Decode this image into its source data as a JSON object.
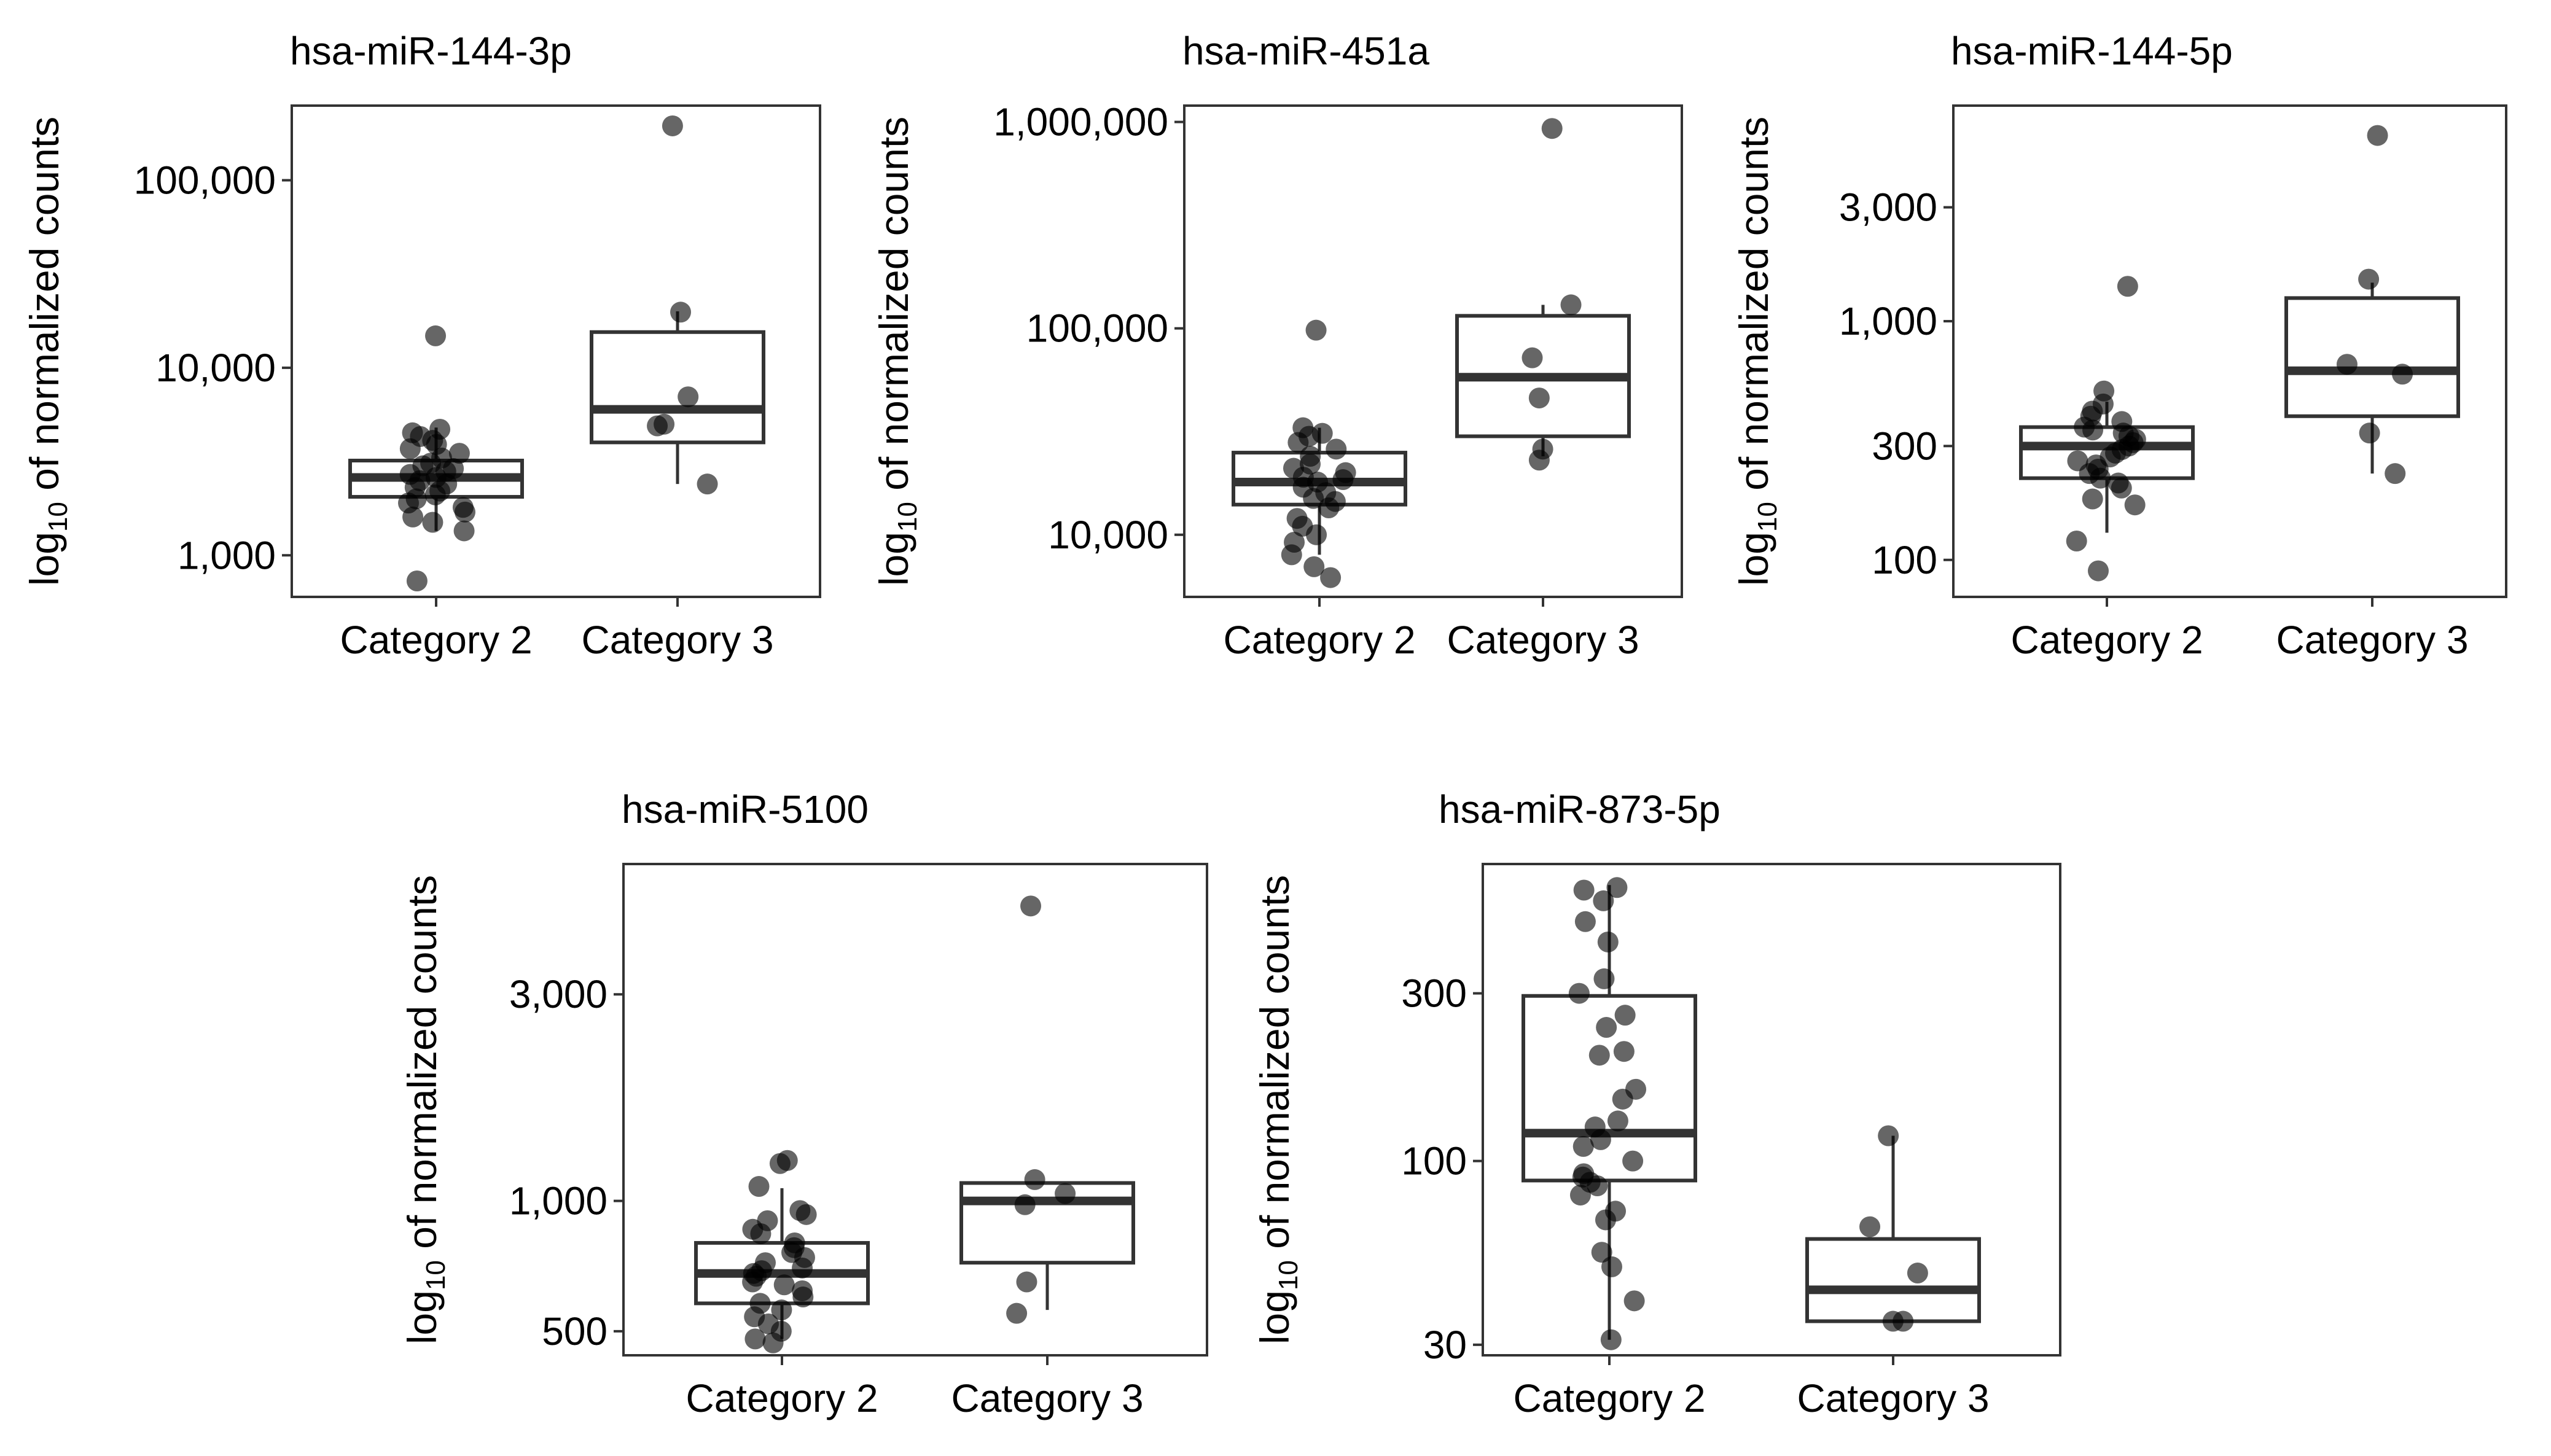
{
  "shared": {
    "ylabel_prefix": "log",
    "ylabel_sub": "10",
    "ylabel_suffix": " of normalized counts"
  },
  "chart_data": [
    {
      "type": "box",
      "title": "hsa-miR-144-3p",
      "ylabel": "log10 of normalized counts",
      "yscale": "log",
      "ylim": [
        600,
        250000
      ],
      "yticks": [
        1000,
        10000,
        100000
      ],
      "ytick_labels": [
        "1,000",
        "10,000",
        "100,000"
      ],
      "categories": [
        "Category 2",
        "Category 3"
      ],
      "boxes": [
        {
          "q1": 2050,
          "median": 2600,
          "q3": 3200,
          "whisker_low": 1350,
          "whisker_high": 4800
        },
        {
          "q1": 4000,
          "median": 6000,
          "q3": 15500,
          "whisker_low": 2400,
          "whisker_high": 20000
        }
      ],
      "points": [
        [
          14800,
          4700,
          4500,
          4300,
          4100,
          3900,
          3700,
          3500,
          3300,
          3100,
          3000,
          2900,
          2800,
          2700,
          2600,
          2500,
          2400,
          2300,
          2200,
          2100,
          2000,
          1900,
          1800,
          1700,
          1600,
          1500,
          1350,
          730
        ],
        [
          195000,
          19800,
          7000,
          5000,
          4900,
          2400
        ]
      ]
    },
    {
      "type": "box",
      "title": "hsa-miR-451a",
      "ylabel": "log10 of normalized counts",
      "yscale": "log",
      "ylim": [
        5000,
        1200000
      ],
      "yticks": [
        10000,
        100000,
        1000000
      ],
      "ytick_labels": [
        "10,000",
        "100,000",
        "1,000,000"
      ],
      "categories": [
        "Category 2",
        "Category 3"
      ],
      "boxes": [
        {
          "q1": 14000,
          "median": 18000,
          "q3": 25000,
          "whisker_low": 8000,
          "whisker_high": 33000
        },
        {
          "q1": 30000,
          "median": 58000,
          "q3": 115000,
          "whisker_low": 24000,
          "whisker_high": 130000
        }
      ],
      "points": [
        [
          98000,
          33000,
          31000,
          30000,
          28000,
          26000,
          24000,
          22000,
          21000,
          20000,
          19000,
          18500,
          18000,
          17000,
          16000,
          15000,
          14500,
          13500,
          12000,
          11000,
          10000,
          9200,
          8000,
          7000,
          6200
        ],
        [
          930000,
          130000,
          72000,
          46000,
          26000,
          23000
        ]
      ]
    },
    {
      "type": "box",
      "title": "hsa-miR-144-5p",
      "ylabel": "log10 of normalized counts",
      "yscale": "log",
      "ylim": [
        70,
        8000
      ],
      "yticks": [
        100,
        300,
        1000,
        3000
      ],
      "ytick_labels": [
        "100",
        "300",
        "1,000",
        "3,000"
      ],
      "categories": [
        "Category 2",
        "Category 3"
      ],
      "boxes": [
        {
          "q1": 220,
          "median": 300,
          "q3": 360,
          "whisker_low": 130,
          "whisker_high": 460
        },
        {
          "q1": 400,
          "median": 620,
          "q3": 1250,
          "whisker_low": 230,
          "whisker_high": 1450
        }
      ],
      "points": [
        [
          1400,
          510,
          450,
          420,
          400,
          380,
          360,
          350,
          340,
          330,
          320,
          310,
          300,
          290,
          280,
          270,
          260,
          250,
          240,
          230,
          220,
          210,
          200,
          180,
          170,
          120,
          90
        ],
        [
          6000,
          1500,
          660,
          600,
          340,
          230
        ]
      ]
    },
    {
      "type": "box",
      "title": "hsa-miR-5100",
      "ylabel": "log10 of normalized counts",
      "yscale": "log",
      "ylim": [
        440,
        6000
      ],
      "yticks": [
        500,
        1000,
        3000
      ],
      "ytick_labels": [
        "500",
        "1,000",
        "3,000"
      ],
      "categories": [
        "Category 2",
        "Category 3"
      ],
      "boxes": [
        {
          "q1": 580,
          "median": 680,
          "q3": 800,
          "whisker_low": 480,
          "whisker_high": 1070
        },
        {
          "q1": 720,
          "median": 1000,
          "q3": 1100,
          "whisker_low": 560,
          "whisker_high": 1100
        }
      ],
      "points": [
        [
          1240,
          1220,
          1080,
          950,
          930,
          900,
          860,
          840,
          800,
          780,
          760,
          740,
          720,
          700,
          690,
          680,
          670,
          650,
          640,
          620,
          600,
          580,
          560,
          540,
          520,
          500,
          480,
          470
        ],
        [
          4800,
          1120,
          1040,
          980,
          650,
          550
        ]
      ]
    },
    {
      "type": "box",
      "title": "hsa-miR-873-5p",
      "ylabel": "log10 of normalized counts",
      "yscale": "log",
      "ylim": [
        28,
        700
      ],
      "yticks": [
        30,
        100,
        300
      ],
      "ytick_labels": [
        "30",
        "100",
        "300"
      ],
      "categories": [
        "Category 2",
        "Category 3"
      ],
      "boxes": [
        {
          "q1": 88,
          "median": 120,
          "q3": 295,
          "whisker_low": 31,
          "whisker_high": 610
        },
        {
          "q1": 35,
          "median": 43,
          "q3": 60,
          "whisker_low": 35,
          "whisker_high": 118
        }
      ],
      "points": [
        [
          600,
          590,
          550,
          480,
          420,
          330,
          300,
          260,
          240,
          205,
          200,
          160,
          150,
          130,
          125,
          115,
          110,
          100,
          92,
          90,
          87,
          85,
          80,
          72,
          68,
          55,
          50,
          40,
          31
        ],
        [
          118,
          65,
          48,
          35,
          35
        ]
      ]
    }
  ]
}
